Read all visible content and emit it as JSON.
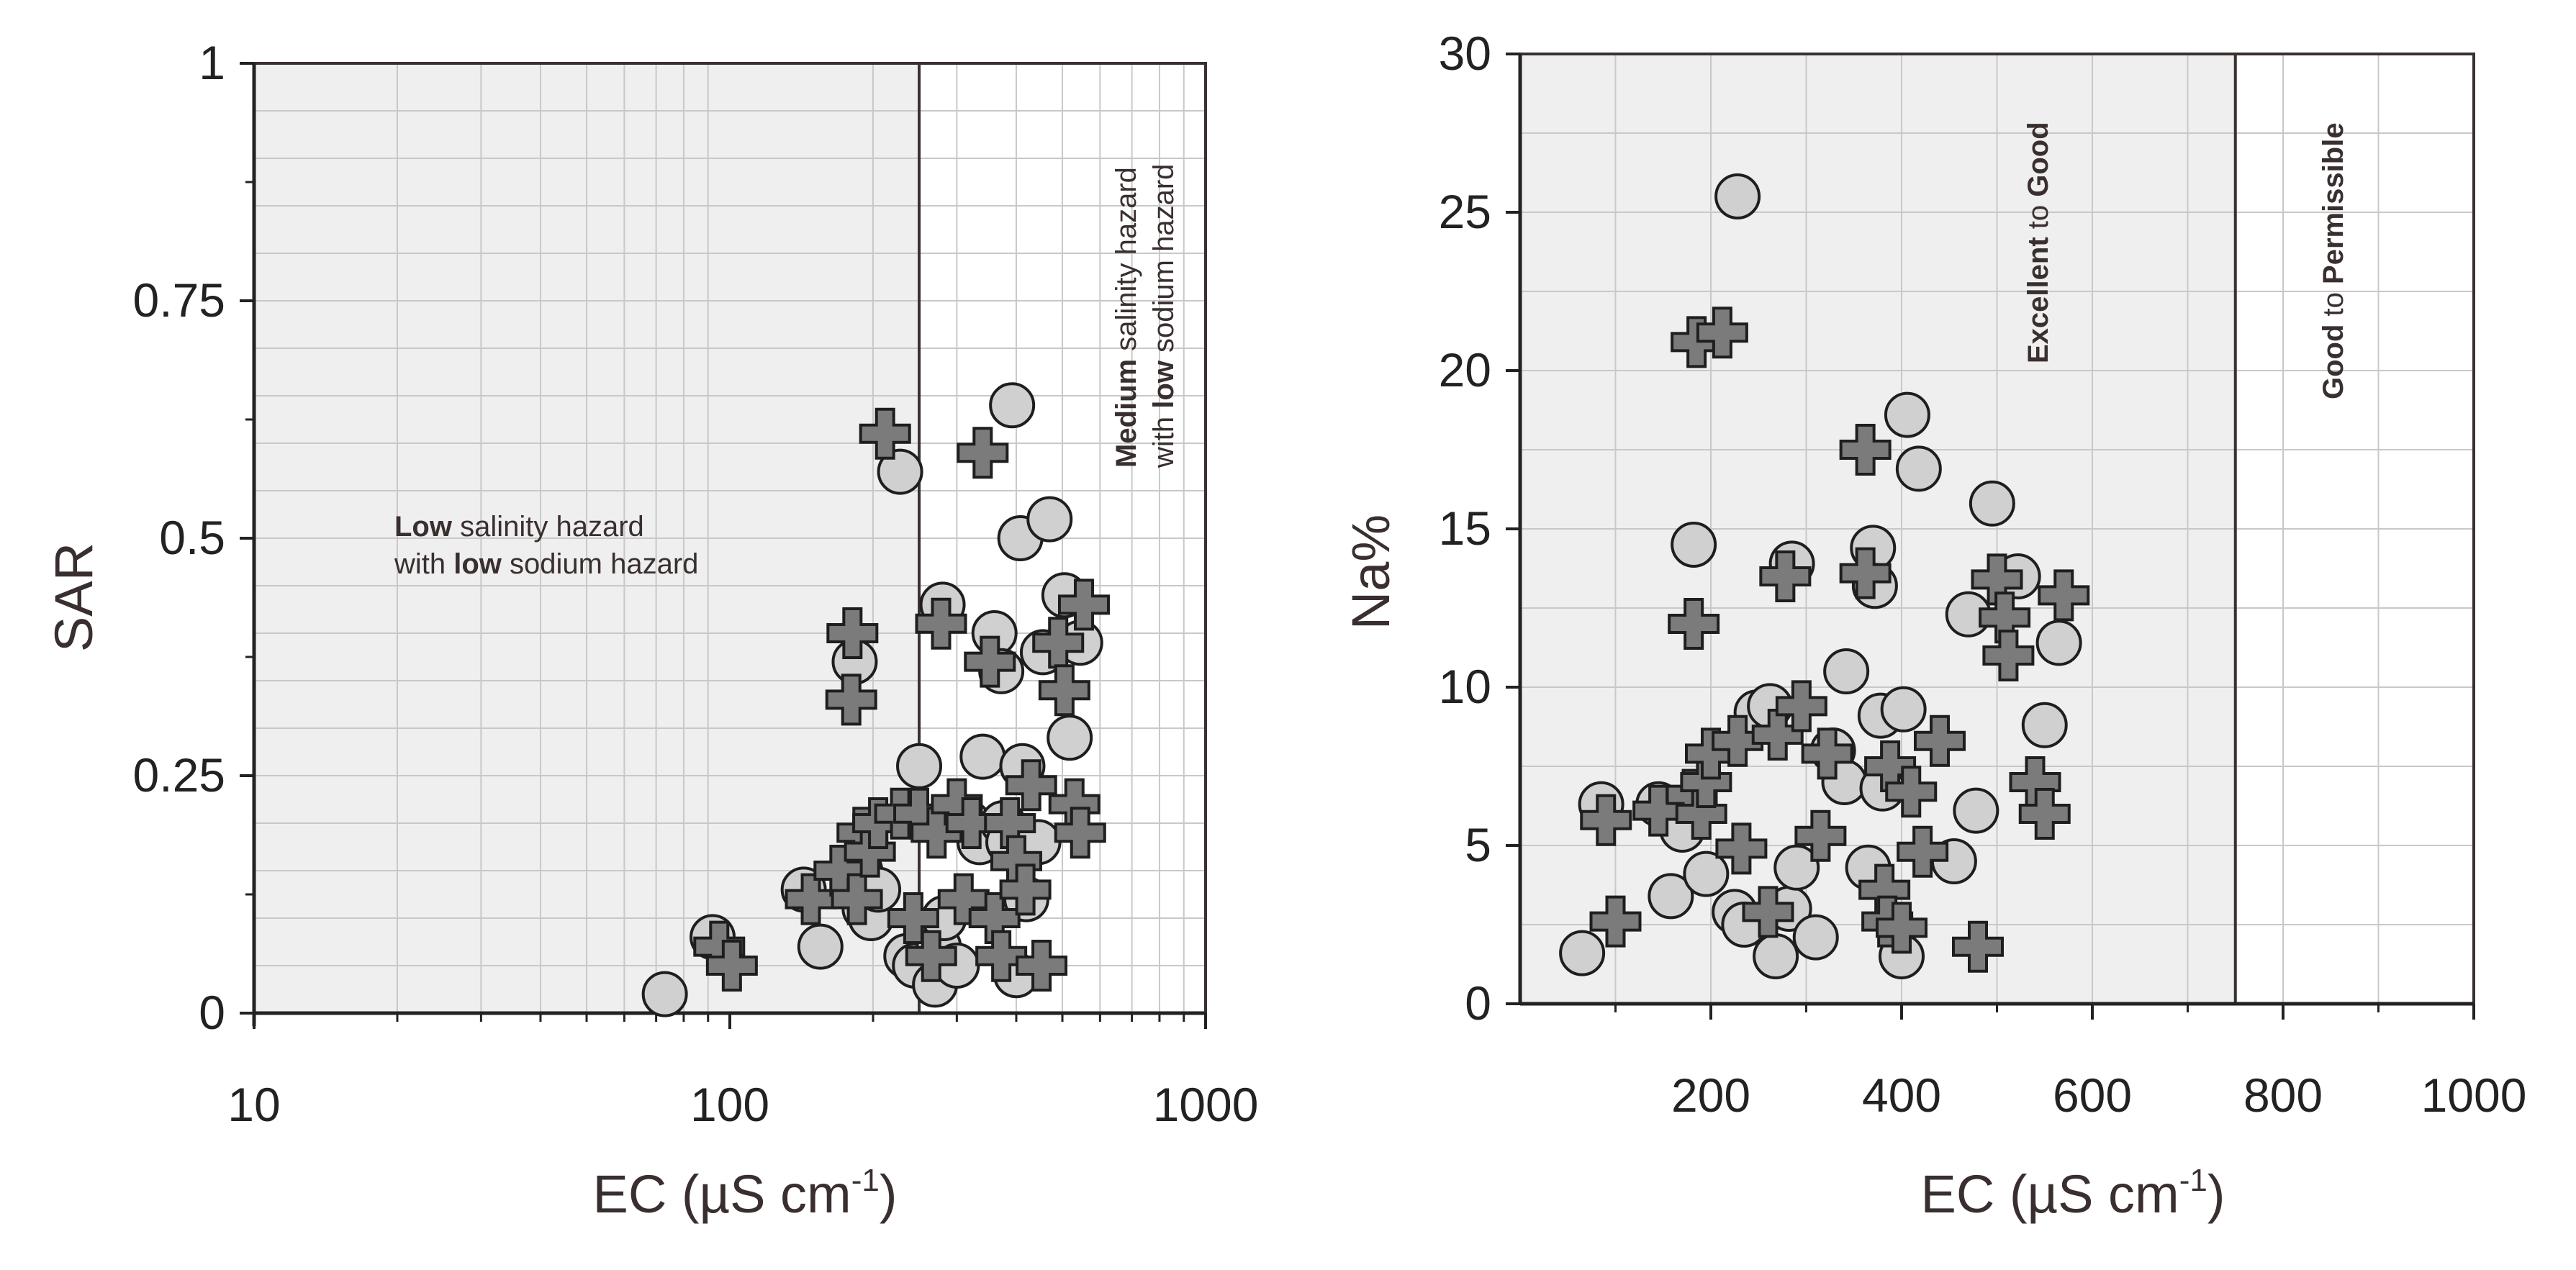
{
  "chart_data": [
    {
      "type": "scatter",
      "x_scale": "log",
      "xlim": [
        10,
        1000
      ],
      "ylim": [
        0,
        1
      ],
      "xlabel": "EC (µS cm",
      "xlabel_sup": "-1",
      "xlabel_end": ")",
      "ylabel": "SAR",
      "x_ticks": [
        "10",
        "100",
        "1000"
      ],
      "y_ticks": [
        "0",
        "0.25",
        "0.5",
        "0.75",
        "1"
      ],
      "divider_x": 250,
      "shaded_region": [
        10,
        250
      ],
      "annotations": {
        "low_bold": "Low",
        "low_text1": " salinity hazard",
        "low_text2a": "with ",
        "low_bold2": "low",
        "low_text2b": " sodium hazard",
        "med_bold": "Medium",
        "med_text1": " salinity hazard",
        "med_text2a": "with ",
        "med_bold2": "low",
        "med_text2b": " sodium hazard"
      },
      "series": [
        {
          "marker": "circle",
          "color": "#d0d0d0",
          "points": [
            [
              73,
              0.02
            ],
            [
              92,
              0.08
            ],
            [
              143,
              0.13
            ],
            [
              155,
              0.07
            ],
            [
              183,
              0.37
            ],
            [
              188,
              0.15
            ],
            [
              192,
              0.11
            ],
            [
              198,
              0.1
            ],
            [
              205,
              0.13
            ],
            [
              228,
              0.57
            ],
            [
              235,
              0.06
            ],
            [
              245,
              0.05
            ],
            [
              250,
              0.26
            ],
            [
              270,
              0.03
            ],
            [
              275,
              0.07
            ],
            [
              280,
              0.43
            ],
            [
              282,
              0.1
            ],
            [
              300,
              0.05
            ],
            [
              318,
              0.2
            ],
            [
              335,
              0.18
            ],
            [
              340,
              0.27
            ],
            [
              360,
              0.4
            ],
            [
              372,
              0.36
            ],
            [
              375,
              0.2
            ],
            [
              385,
              0.18
            ],
            [
              392,
              0.64
            ],
            [
              400,
              0.04
            ],
            [
              408,
              0.5
            ],
            [
              412,
              0.26
            ],
            [
              420,
              0.12
            ],
            [
              445,
              0.18
            ],
            [
              455,
              0.38
            ],
            [
              470,
              0.52
            ],
            [
              505,
              0.44
            ],
            [
              518,
              0.29
            ],
            [
              545,
              0.39
            ]
          ]
        },
        {
          "marker": "cross",
          "color": "#7b7b7b",
          "points": [
            [
              95,
              0.07
            ],
            [
              101,
              0.05
            ],
            [
              148,
              0.12
            ],
            [
              170,
              0.15
            ],
            [
              181,
              0.4
            ],
            [
              180,
              0.33
            ],
            [
              185,
              0.12
            ],
            [
              190,
              0.19
            ],
            [
              197,
              0.17
            ],
            [
              205,
              0.2
            ],
            [
              212,
              0.61
            ],
            [
              228,
              0.21
            ],
            [
              243,
              0.1
            ],
            [
              250,
              0.21
            ],
            [
              265,
              0.06
            ],
            [
              272,
              0.19
            ],
            [
              278,
              0.41
            ],
            [
              300,
              0.22
            ],
            [
              310,
              0.12
            ],
            [
              322,
              0.2
            ],
            [
              340,
              0.59
            ],
            [
              352,
              0.37
            ],
            [
              360,
              0.1
            ],
            [
              372,
              0.06
            ],
            [
              388,
              0.2
            ],
            [
              400,
              0.16
            ],
            [
              418,
              0.13
            ],
            [
              430,
              0.24
            ],
            [
              452,
              0.05
            ],
            [
              490,
              0.39
            ],
            [
              505,
              0.34
            ],
            [
              530,
              0.22
            ],
            [
              545,
              0.19
            ],
            [
              555,
              0.43
            ]
          ]
        }
      ]
    },
    {
      "type": "scatter",
      "x_scale": "linear",
      "xlim": [
        0,
        1000
      ],
      "ylim": [
        0,
        30
      ],
      "xlabel": "EC (µS cm",
      "xlabel_sup": "-1",
      "xlabel_end": ")",
      "ylabel": "Na%",
      "x_ticks": [
        "200",
        "400",
        "600",
        "800",
        "1000"
      ],
      "y_ticks": [
        "0",
        "5",
        "10",
        "15",
        "20",
        "25",
        "30"
      ],
      "divider_x": 750,
      "shaded_region": [
        0,
        750
      ],
      "annotations": {
        "zone1_bold1": "Excellent",
        "zone1_text": " to ",
        "zone1_bold2": "Good",
        "zone2_bold1": "Good",
        "zone2_text": " to ",
        "zone2_bold2": "Permissible"
      },
      "series": [
        {
          "marker": "circle",
          "color": "#d0d0d0",
          "points": [
            [
              65,
              1.6
            ],
            [
              85,
              6.3
            ],
            [
              145,
              6.3
            ],
            [
              158,
              3.4
            ],
            [
              170,
              5.5
            ],
            [
              182,
              14.5
            ],
            [
              195,
              4.1
            ],
            [
              228,
              25.5
            ],
            [
              225,
              2.9
            ],
            [
              235,
              2.5
            ],
            [
              248,
              9.2
            ],
            [
              262,
              9.4
            ],
            [
              268,
              1.5
            ],
            [
              282,
              3.0
            ],
            [
              285,
              13.9
            ],
            [
              290,
              4.3
            ],
            [
              310,
              2.1
            ],
            [
              328,
              8.0
            ],
            [
              340,
              7.0
            ],
            [
              342,
              10.5
            ],
            [
              365,
              4.3
            ],
            [
              370,
              14.4
            ],
            [
              372,
              13.2
            ],
            [
              378,
              9.1
            ],
            [
              380,
              6.8
            ],
            [
              400,
              1.5
            ],
            [
              402,
              9.3
            ],
            [
              406,
              18.6
            ],
            [
              418,
              16.9
            ],
            [
              455,
              4.5
            ],
            [
              470,
              12.3
            ],
            [
              478,
              6.1
            ],
            [
              495,
              15.8
            ],
            [
              522,
              13.5
            ],
            [
              550,
              8.8
            ],
            [
              565,
              11.4
            ]
          ]
        },
        {
          "marker": "cross",
          "color": "#7b7b7b",
          "points": [
            [
              90,
              5.8
            ],
            [
              100,
              2.6
            ],
            [
              145,
              6.1
            ],
            [
              180,
              6.6
            ],
            [
              182,
              12.0
            ],
            [
              185,
              20.9
            ],
            [
              190,
              6.0
            ],
            [
              195,
              7.0
            ],
            [
              200,
              7.9
            ],
            [
              212,
              21.2
            ],
            [
              228,
              8.3
            ],
            [
              232,
              4.9
            ],
            [
              260,
              2.9
            ],
            [
              270,
              8.5
            ],
            [
              278,
              13.5
            ],
            [
              295,
              9.4
            ],
            [
              315,
              5.3
            ],
            [
              322,
              7.9
            ],
            [
              362,
              17.5
            ],
            [
              362,
              13.6
            ],
            [
              382,
              3.6
            ],
            [
              385,
              2.6
            ],
            [
              388,
              7.5
            ],
            [
              400,
              2.4
            ],
            [
              410,
              6.7
            ],
            [
              422,
              4.8
            ],
            [
              440,
              8.3
            ],
            [
              480,
              1.8
            ],
            [
              500,
              13.4
            ],
            [
              508,
              12.2
            ],
            [
              512,
              11.0
            ],
            [
              540,
              7.0
            ],
            [
              550,
              6.0
            ],
            [
              570,
              12.9
            ]
          ]
        }
      ]
    }
  ]
}
